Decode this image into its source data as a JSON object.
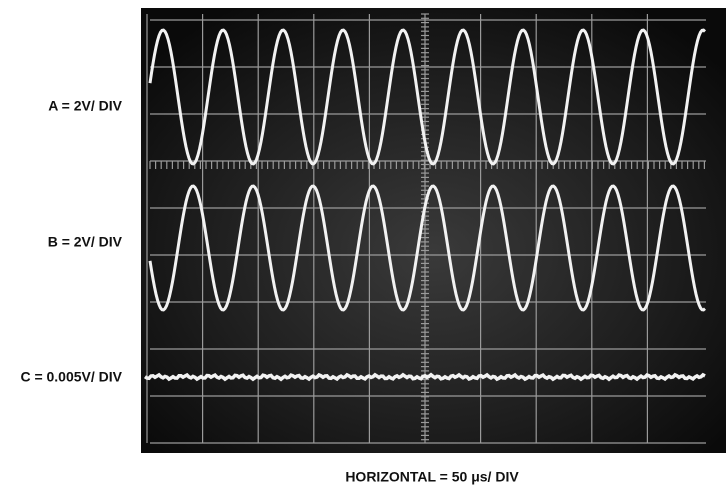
{
  "channels": [
    {
      "label": "A = 2V/ DIV"
    },
    {
      "label": "B = 2V/ DIV"
    },
    {
      "label": "C = 0.005V/ DIV"
    }
  ],
  "horizontal": {
    "label": "HORIZONTAL = 50 μs/ DIV"
  }
}
